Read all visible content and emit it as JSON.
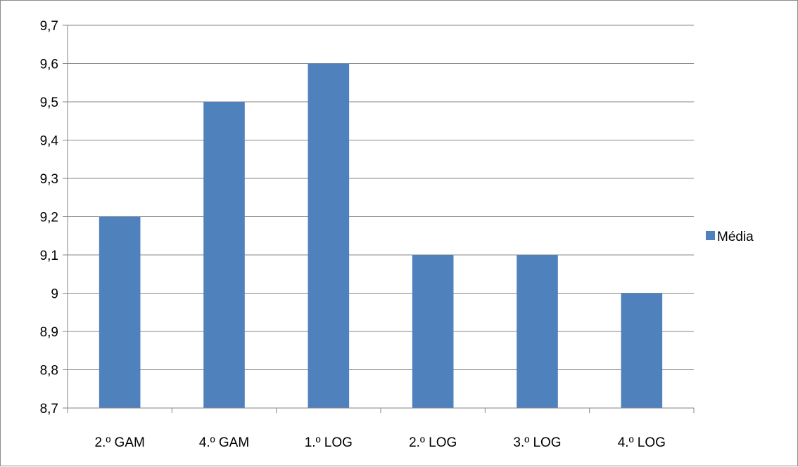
{
  "chart_data": {
    "type": "bar",
    "categories": [
      "2.º GAM",
      "4.º GAM",
      "1.º LOG",
      "2.º LOG",
      "3.º LOG",
      "4.º LOG"
    ],
    "series": [
      {
        "name": "Média",
        "values": [
          9.2,
          9.5,
          9.6,
          9.1,
          9.1,
          9.0
        ],
        "color": "#4f81bd"
      }
    ],
    "ylim": [
      8.7,
      9.7
    ],
    "yticks": [
      8.7,
      8.8,
      8.9,
      9.0,
      9.1,
      9.2,
      9.3,
      9.4,
      9.5,
      9.6,
      9.7
    ],
    "ytick_labels": [
      "8,7",
      "8,8",
      "8,9",
      "9",
      "9,1",
      "9,2",
      "9,3",
      "9,4",
      "9,5",
      "9,6",
      "9,7"
    ],
    "grid": true,
    "legend_position": "right",
    "gridline_color": "#868686",
    "axis_color": "#868686"
  }
}
